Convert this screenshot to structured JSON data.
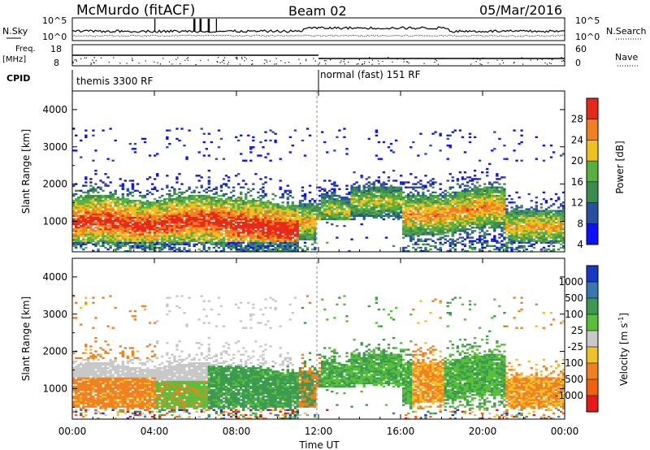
{
  "header": {
    "station": "McMurdo (fitACF)",
    "beam": "Beam 02",
    "date": "05/Mar/2016"
  },
  "status_panels": {
    "noise_left": {
      "label": "N.Sky",
      "ticks": [
        "10^5",
        "10^0"
      ]
    },
    "noise_right": {
      "label": "N.Search",
      "ticks": [
        "10^5",
        "10^0"
      ]
    },
    "freq_left": {
      "label_top": "Freq.",
      "label_unit": "[MHz]",
      "ticks": [
        "18",
        "8"
      ]
    },
    "nave_right": {
      "label": "Nave",
      "ticks": [
        "60",
        "0"
      ]
    },
    "cpid": {
      "label": "CPID",
      "programs": [
        {
          "name": "themis 3300 RF",
          "start_hour": 0
        },
        {
          "name": "normal (fast) 151 RF",
          "start_hour": 12
        }
      ]
    }
  },
  "chart_data": [
    {
      "type": "heatmap",
      "name": "power",
      "ylabel": "Slant Range [km]",
      "ylim": [
        180,
        4500
      ],
      "yticks": [
        "1000",
        "2000",
        "3000",
        "4000"
      ],
      "colorbar": {
        "label": "Power [dB]",
        "ticks": [
          "4",
          "8",
          "12",
          "16",
          "20",
          "24",
          "28"
        ],
        "colors": [
          "#1010ff",
          "#2850a0",
          "#3c8c50",
          "#58b040",
          "#f0c020",
          "#f08020",
          "#e82818"
        ]
      }
    },
    {
      "type": "heatmap",
      "name": "velocity",
      "ylabel": "Slant Range [km]",
      "ylim": [
        180,
        4500
      ],
      "yticks": [
        "1000",
        "2000",
        "3000",
        "4000"
      ],
      "xlabel": "Time UT",
      "xticks": [
        "00:00",
        "04:00",
        "08:00",
        "12:00",
        "16:00",
        "20:00",
        "00:00"
      ],
      "xlim_hours": [
        0,
        24
      ],
      "colorbar": {
        "label": "Velocity [m s",
        "label_exp": "-1",
        "ticks": [
          "1000",
          "500",
          "100",
          "25",
          "-25",
          "-100",
          "-500",
          "-1000"
        ],
        "colors": [
          "#1838c8",
          "#3878b0",
          "#3c9a50",
          "#58c038",
          "#c8c8c8",
          "#f0c028",
          "#f08020",
          "#f06010",
          "#e81818"
        ]
      }
    }
  ]
}
